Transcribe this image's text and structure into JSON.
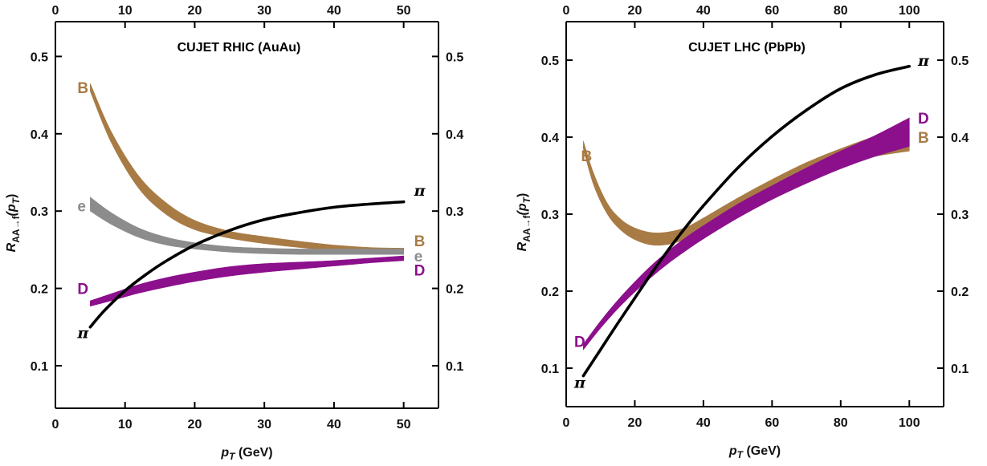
{
  "colors": {
    "B": "#a87b45",
    "e": "#8c8c8c",
    "D": "#8c0f8c",
    "pi": "#000000"
  },
  "chart_data": [
    {
      "type": "area",
      "title": "CUJET RHIC (AuAu)",
      "xlabel": {
        "main": "p",
        "sub": "T",
        "unit": " (GeV)"
      },
      "ylabel": {
        "main": "R",
        "sub": "AA→f",
        "paren": "(p",
        "psub": "T",
        "close": ")"
      },
      "xlim": [
        0,
        55
      ],
      "ylim": [
        0.045,
        0.545
      ],
      "x_ticks": [
        0,
        10,
        20,
        30,
        40,
        50
      ],
      "y_ticks": [
        0.1,
        0.2,
        0.3,
        0.4,
        0.5
      ],
      "grid": false,
      "series": [
        {
          "name": "B",
          "color": "#a87b45",
          "x": [
            5,
            8,
            12,
            16,
            20,
            25,
            30,
            35,
            40,
            45,
            50
          ],
          "lo": [
            0.455,
            0.389,
            0.329,
            0.295,
            0.276,
            0.265,
            0.258,
            0.253,
            0.249,
            0.246,
            0.245
          ],
          "hi": [
            0.465,
            0.403,
            0.345,
            0.31,
            0.288,
            0.274,
            0.267,
            0.261,
            0.256,
            0.253,
            0.252
          ],
          "left_label_xy": [
            2,
            0.46
          ],
          "right_label_xy": [
            51.5,
            0.262
          ]
        },
        {
          "name": "e",
          "color": "#8c8c8c",
          "x": [
            5,
            8,
            12,
            16,
            20,
            25,
            30,
            35,
            40,
            45,
            50
          ],
          "lo": [
            0.3,
            0.283,
            0.266,
            0.256,
            0.251,
            0.247,
            0.245,
            0.244,
            0.244,
            0.244,
            0.244
          ],
          "hi": [
            0.318,
            0.298,
            0.278,
            0.266,
            0.259,
            0.254,
            0.252,
            0.251,
            0.251,
            0.251,
            0.251
          ],
          "left_label_xy": [
            2,
            0.307
          ],
          "right_label_xy": [
            51.5,
            0.242
          ]
        },
        {
          "name": "D",
          "color": "#8c0f8c",
          "x": [
            5,
            8,
            12,
            16,
            20,
            25,
            30,
            35,
            40,
            45,
            50
          ],
          "lo": [
            0.177,
            0.184,
            0.194,
            0.202,
            0.209,
            0.216,
            0.221,
            0.225,
            0.229,
            0.233,
            0.236
          ],
          "hi": [
            0.184,
            0.193,
            0.205,
            0.214,
            0.221,
            0.228,
            0.232,
            0.234,
            0.236,
            0.239,
            0.242
          ],
          "left_label_xy": [
            2,
            0.2
          ],
          "right_label_xy": [
            51.5,
            0.224
          ]
        },
        {
          "name": "π",
          "color": "#000000",
          "x": [
            5,
            7,
            10,
            13,
            16,
            20,
            25,
            30,
            35,
            40,
            45,
            50
          ],
          "y": [
            0.15,
            0.171,
            0.197,
            0.218,
            0.236,
            0.256,
            0.275,
            0.289,
            0.298,
            0.305,
            0.309,
            0.312
          ],
          "left_label_xy": [
            2,
            0.143
          ],
          "right_label_xy": [
            51.5,
            0.327
          ]
        }
      ]
    },
    {
      "type": "area",
      "title": "CUJET LHC (PbPb)",
      "xlabel": {
        "main": "p",
        "sub": "T",
        "unit": " (GeV)"
      },
      "ylabel": {
        "main": "R",
        "sub": "AA→f",
        "paren": "(p",
        "psub": "T",
        "close": ")"
      },
      "xlim": [
        0,
        110
      ],
      "ylim": [
        0.05,
        0.55
      ],
      "x_ticks": [
        0,
        20,
        40,
        60,
        80,
        100
      ],
      "y_ticks": [
        0.1,
        0.2,
        0.3,
        0.4,
        0.5
      ],
      "grid": false,
      "series": [
        {
          "name": "B",
          "color": "#a87b45",
          "x": [
            5,
            8,
            12,
            16,
            20,
            25,
            30,
            35,
            40,
            50,
            60,
            70,
            80,
            90,
            100
          ],
          "lo": [
            0.385,
            0.338,
            0.3,
            0.279,
            0.267,
            0.26,
            0.261,
            0.268,
            0.28,
            0.307,
            0.331,
            0.35,
            0.364,
            0.375,
            0.382
          ],
          "hi": [
            0.395,
            0.353,
            0.314,
            0.293,
            0.282,
            0.276,
            0.277,
            0.283,
            0.295,
            0.321,
            0.345,
            0.367,
            0.385,
            0.401,
            0.413
          ],
          "left_label_xy": [
            2,
            0.376
          ],
          "right_label_xy": [
            102.5,
            0.4
          ]
        },
        {
          "name": "D",
          "color": "#8c0f8c",
          "x": [
            5,
            10,
            15,
            20,
            25,
            30,
            35,
            40,
            50,
            60,
            70,
            80,
            90,
            100
          ],
          "lo": [
            0.124,
            0.152,
            0.177,
            0.199,
            0.219,
            0.237,
            0.253,
            0.268,
            0.295,
            0.319,
            0.34,
            0.359,
            0.375,
            0.388
          ],
          "hi": [
            0.131,
            0.161,
            0.188,
            0.212,
            0.234,
            0.253,
            0.27,
            0.285,
            0.313,
            0.337,
            0.36,
            0.382,
            0.402,
            0.425
          ],
          "left_label_xy": [
            0,
            0.135
          ],
          "right_label_xy": [
            102.5,
            0.425
          ]
        },
        {
          "name": "π",
          "color": "#000000",
          "x": [
            5,
            10,
            15,
            20,
            25,
            30,
            35,
            40,
            50,
            60,
            70,
            80,
            90,
            100
          ],
          "y": [
            0.09,
            0.124,
            0.158,
            0.191,
            0.224,
            0.255,
            0.284,
            0.311,
            0.36,
            0.401,
            0.435,
            0.463,
            0.481,
            0.492
          ],
          "left_label_xy": [
            0,
            0.082
          ],
          "right_label_xy": [
            102.5,
            0.5
          ]
        }
      ]
    }
  ]
}
